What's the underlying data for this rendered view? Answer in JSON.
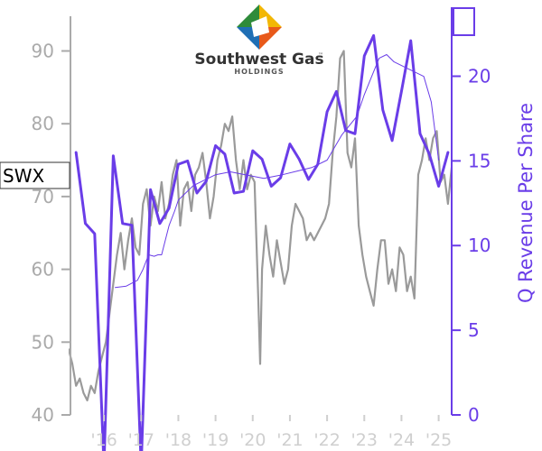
{
  "logo": {
    "name": "Southwest Gas",
    "tm": "™",
    "sub": "HOLDINGS"
  },
  "ticker": "SWX",
  "colors": {
    "price": "#9a9a9a",
    "revenue": "#6a3de8",
    "left_axis": "#aaaaaa",
    "x_ticks": "#cfcfcf"
  },
  "chart_data": {
    "type": "line",
    "title": "",
    "ylabel_left": "",
    "ylabel_right": "Q Revenue Per Share",
    "ylim_left": [
      40,
      97
    ],
    "ylim_right": [
      0,
      24.5
    ],
    "yticks_left": [
      40,
      50,
      60,
      70,
      80,
      90
    ],
    "yticks_right": [
      0,
      5,
      10,
      15,
      20
    ],
    "x_tick_labels": [
      "'16",
      "'17",
      "'18",
      "'19",
      "'20",
      "'21",
      "'22",
      "'23",
      "'24",
      "'25"
    ],
    "x_tick_years": [
      2016,
      2017,
      2018,
      2019,
      2020,
      2021,
      2022,
      2023,
      2024,
      2025
    ],
    "xlim": [
      2015.05,
      2025.35
    ],
    "grid": false,
    "series": [
      {
        "name": "SWX",
        "axis": "left",
        "style": "thin-gray-line",
        "x": [
          2015.05,
          2015.15,
          2015.25,
          2015.35,
          2015.45,
          2015.55,
          2015.65,
          2015.75,
          2015.85,
          2015.95,
          2016.05,
          2016.15,
          2016.25,
          2016.35,
          2016.45,
          2016.55,
          2016.65,
          2016.75,
          2016.85,
          2016.95,
          2017.05,
          2017.15,
          2017.25,
          2017.35,
          2017.45,
          2017.55,
          2017.65,
          2017.75,
          2017.85,
          2017.95,
          2018.05,
          2018.15,
          2018.25,
          2018.35,
          2018.45,
          2018.55,
          2018.65,
          2018.75,
          2018.85,
          2018.95,
          2019.05,
          2019.15,
          2019.25,
          2019.35,
          2019.45,
          2019.55,
          2019.65,
          2019.75,
          2019.85,
          2019.95,
          2020.05,
          2020.15,
          2020.2,
          2020.25,
          2020.35,
          2020.45,
          2020.55,
          2020.65,
          2020.75,
          2020.85,
          2020.95,
          2021.05,
          2021.15,
          2021.25,
          2021.35,
          2021.45,
          2021.55,
          2021.65,
          2021.75,
          2021.85,
          2021.95,
          2022.05,
          2022.15,
          2022.25,
          2022.35,
          2022.45,
          2022.55,
          2022.65,
          2022.75,
          2022.85,
          2022.95,
          2023.05,
          2023.15,
          2023.25,
          2023.35,
          2023.45,
          2023.55,
          2023.65,
          2023.75,
          2023.85,
          2023.95,
          2024.05,
          2024.15,
          2024.25,
          2024.35,
          2024.45,
          2024.55,
          2024.65,
          2024.75,
          2024.85,
          2024.95,
          2025.05,
          2025.15,
          2025.25,
          2025.35
        ],
        "values": [
          49,
          47,
          44,
          45,
          43,
          42,
          44,
          43,
          46,
          48,
          50,
          54,
          58,
          62,
          65,
          60,
          64,
          67,
          63,
          62,
          69,
          71,
          66,
          70,
          68,
          72,
          67,
          69,
          73,
          75,
          66,
          71,
          72,
          68,
          73,
          74,
          76,
          72,
          67,
          70,
          75,
          77,
          80,
          79,
          81,
          75,
          71,
          75,
          71,
          73,
          72,
          56,
          47,
          60,
          66,
          62,
          59,
          64,
          61,
          58,
          60,
          66,
          69,
          68,
          67,
          64,
          65,
          64,
          65,
          66,
          67,
          69,
          76,
          81,
          89,
          90,
          76,
          74,
          78,
          66,
          62,
          59,
          57,
          55,
          60,
          64,
          64,
          58,
          60,
          57,
          63,
          62,
          57,
          59,
          56,
          73,
          75,
          78,
          75,
          78,
          79,
          72,
          73,
          69,
          74
        ]
      },
      {
        "name": "",
        "axis": "left",
        "style": "thin-purple-line",
        "x": [
          2016.3,
          2016.6,
          2016.9,
          2017.05,
          2017.2,
          2017.35,
          2017.45,
          2017.55,
          2017.75,
          2017.9,
          2018.0,
          2018.4,
          2018.8,
          2019.0,
          2019.4,
          2019.8,
          2020.3,
          2020.8,
          2021.2,
          2021.6,
          2022.0,
          2022.4,
          2022.8,
          2023.0,
          2023.2,
          2023.4,
          2023.6,
          2023.8,
          2024.2,
          2024.6,
          2024.8,
          2025.0
        ],
        "values": [
          57.5,
          57.7,
          58.5,
          60,
          62,
          61.8,
          62,
          62,
          66,
          68,
          69.5,
          71.5,
          72.5,
          73,
          73.4,
          73,
          72.5,
          73,
          73.5,
          74,
          75,
          78.5,
          81,
          84,
          86.5,
          89,
          89.5,
          88.5,
          87.5,
          86.5,
          83,
          75
        ]
      },
      {
        "name": "Q Revenue Per Share",
        "axis": "right",
        "style": "thick-purple-line",
        "x": [
          2015.25,
          2015.5,
          2015.75,
          2016.0,
          2016.25,
          2016.5,
          2016.75,
          2017.0,
          2017.25,
          2017.5,
          2017.75,
          2018.0,
          2018.25,
          2018.5,
          2018.75,
          2019.0,
          2019.25,
          2019.5,
          2019.75,
          2020.0,
          2020.25,
          2020.5,
          2020.75,
          2021.0,
          2021.25,
          2021.5,
          2021.75,
          2022.0,
          2022.25,
          2022.5,
          2022.75,
          2023.0,
          2023.25,
          2023.5,
          2023.75,
          2024.0,
          2024.25,
          2024.5,
          2024.75,
          2025.0,
          2025.25
        ],
        "values": [
          15.5,
          11.3,
          10.7,
          -3,
          15.3,
          11.3,
          11.2,
          -3,
          13.3,
          11.3,
          12.2,
          14.8,
          15,
          13.1,
          13.8,
          15.9,
          15.4,
          13.1,
          13.2,
          15.6,
          15.1,
          13.5,
          14,
          16,
          15.1,
          13.9,
          14.8,
          17.9,
          19.1,
          16.8,
          16.6,
          21.2,
          22.4,
          18,
          16.2,
          19.1,
          22.1,
          16.6,
          15.4,
          13.5,
          15.5
        ]
      }
    ]
  }
}
